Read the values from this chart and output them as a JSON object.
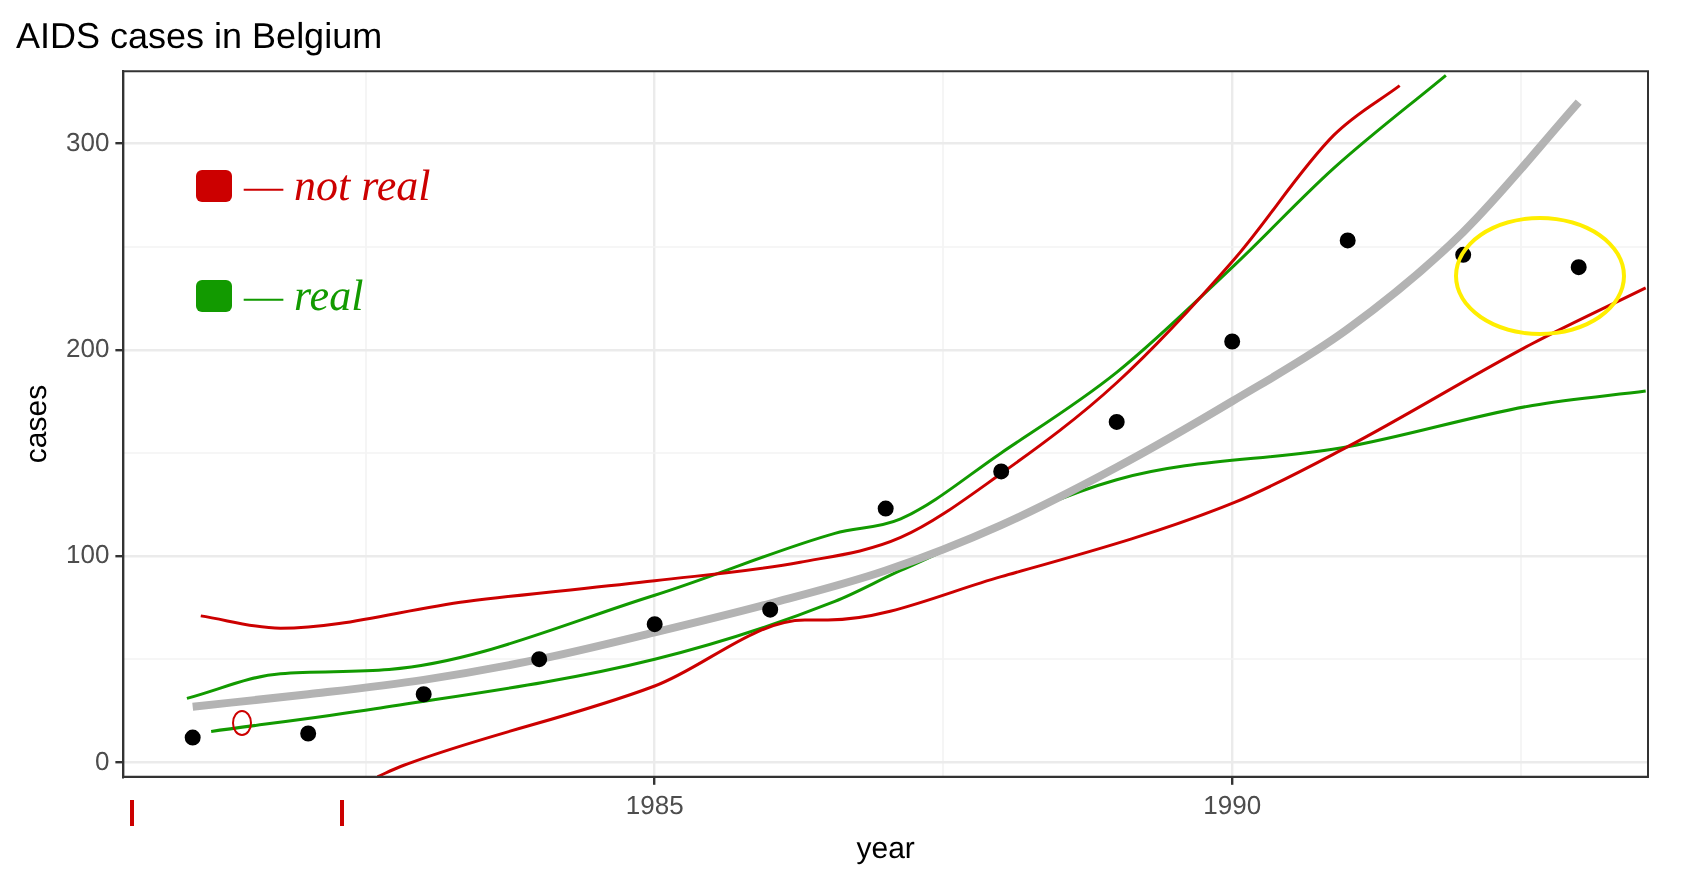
{
  "chart_data": {
    "type": "scatter",
    "title": "AIDS cases in Belgium",
    "xlabel": "year",
    "ylabel": "cases",
    "xlim": [
      1980.4,
      1993.6
    ],
    "ylim": [
      -7,
      335
    ],
    "xticks": [
      {
        "value": 1982.5,
        "label": null
      },
      1985,
      {
        "value": 1987.5,
        "label": null
      },
      1990,
      {
        "value": 1992.5,
        "label": null
      }
    ],
    "yticks": [
      0,
      {
        "value": 50,
        "label": null
      },
      100,
      {
        "value": 150,
        "label": null
      },
      200,
      {
        "value": 250,
        "label": null
      },
      300
    ],
    "grid": true,
    "legend": false,
    "annotations": [
      "— not real",
      "— real"
    ],
    "series": [
      {
        "color": "#000000",
        "marker": "circle",
        "x": [
          1981,
          1982,
          1983,
          1984,
          1985,
          1986,
          1987,
          1988,
          1989,
          1990,
          1991,
          1992,
          1993
        ],
        "values": [
          12,
          14,
          33,
          50,
          67,
          74,
          123,
          141,
          165,
          204,
          253,
          246,
          240
        ]
      },
      {
        "type": "line",
        "marker": "none",
        "color": "#b3b3b3",
        "x": [
          1981,
          1982,
          1983,
          1984,
          1985,
          1986,
          1987,
          1988,
          1989,
          1990,
          1991,
          1992,
          1993
        ],
        "values": [
          27,
          33,
          40,
          50,
          63,
          77,
          93,
          115,
          143,
          175,
          210,
          257,
          320
        ]
      },
      {
        "type": "line",
        "marker": "none",
        "color": "#cc0000",
        "x": [
          1981.07,
          1981.76,
          1983.37,
          1985,
          1986.26,
          1987.13,
          1988,
          1989,
          1990.02,
          1990.88,
          1991.45
        ],
        "values": [
          71,
          65,
          78,
          88,
          97,
          109,
          140,
          184,
          244,
          304,
          328
        ]
      },
      {
        "type": "line",
        "marker": "none",
        "color": "#cc0000",
        "x": [
          1982.6,
          1982.8,
          1985,
          1986.3,
          1986.5,
          1988,
          1990.02,
          1991,
          1992.6,
          1993.58
        ],
        "values": [
          -7,
          -2,
          37,
          69,
          69,
          90,
          126,
          153,
          203,
          230
        ]
      },
      {
        "type": "line",
        "marker": "none",
        "color": "#129a00",
        "x": [
          1980.95,
          1981.76,
          1982.7,
          1985,
          1986.56,
          1987.13,
          1988,
          1989,
          1990.02,
          1990.88,
          1991.85
        ],
        "values": [
          31,
          43,
          45,
          81,
          111,
          118,
          150,
          189,
          241,
          288,
          333
        ]
      },
      {
        "type": "line",
        "marker": "none",
        "color": "#129a00",
        "x": [
          1981.16,
          1982.58,
          1985,
          1986.56,
          1987.13,
          1989,
          1991,
          1992.6,
          1993.58
        ],
        "values": [
          15,
          26,
          50,
          78,
          93,
          137,
          153,
          173,
          180
        ]
      }
    ]
  }
}
